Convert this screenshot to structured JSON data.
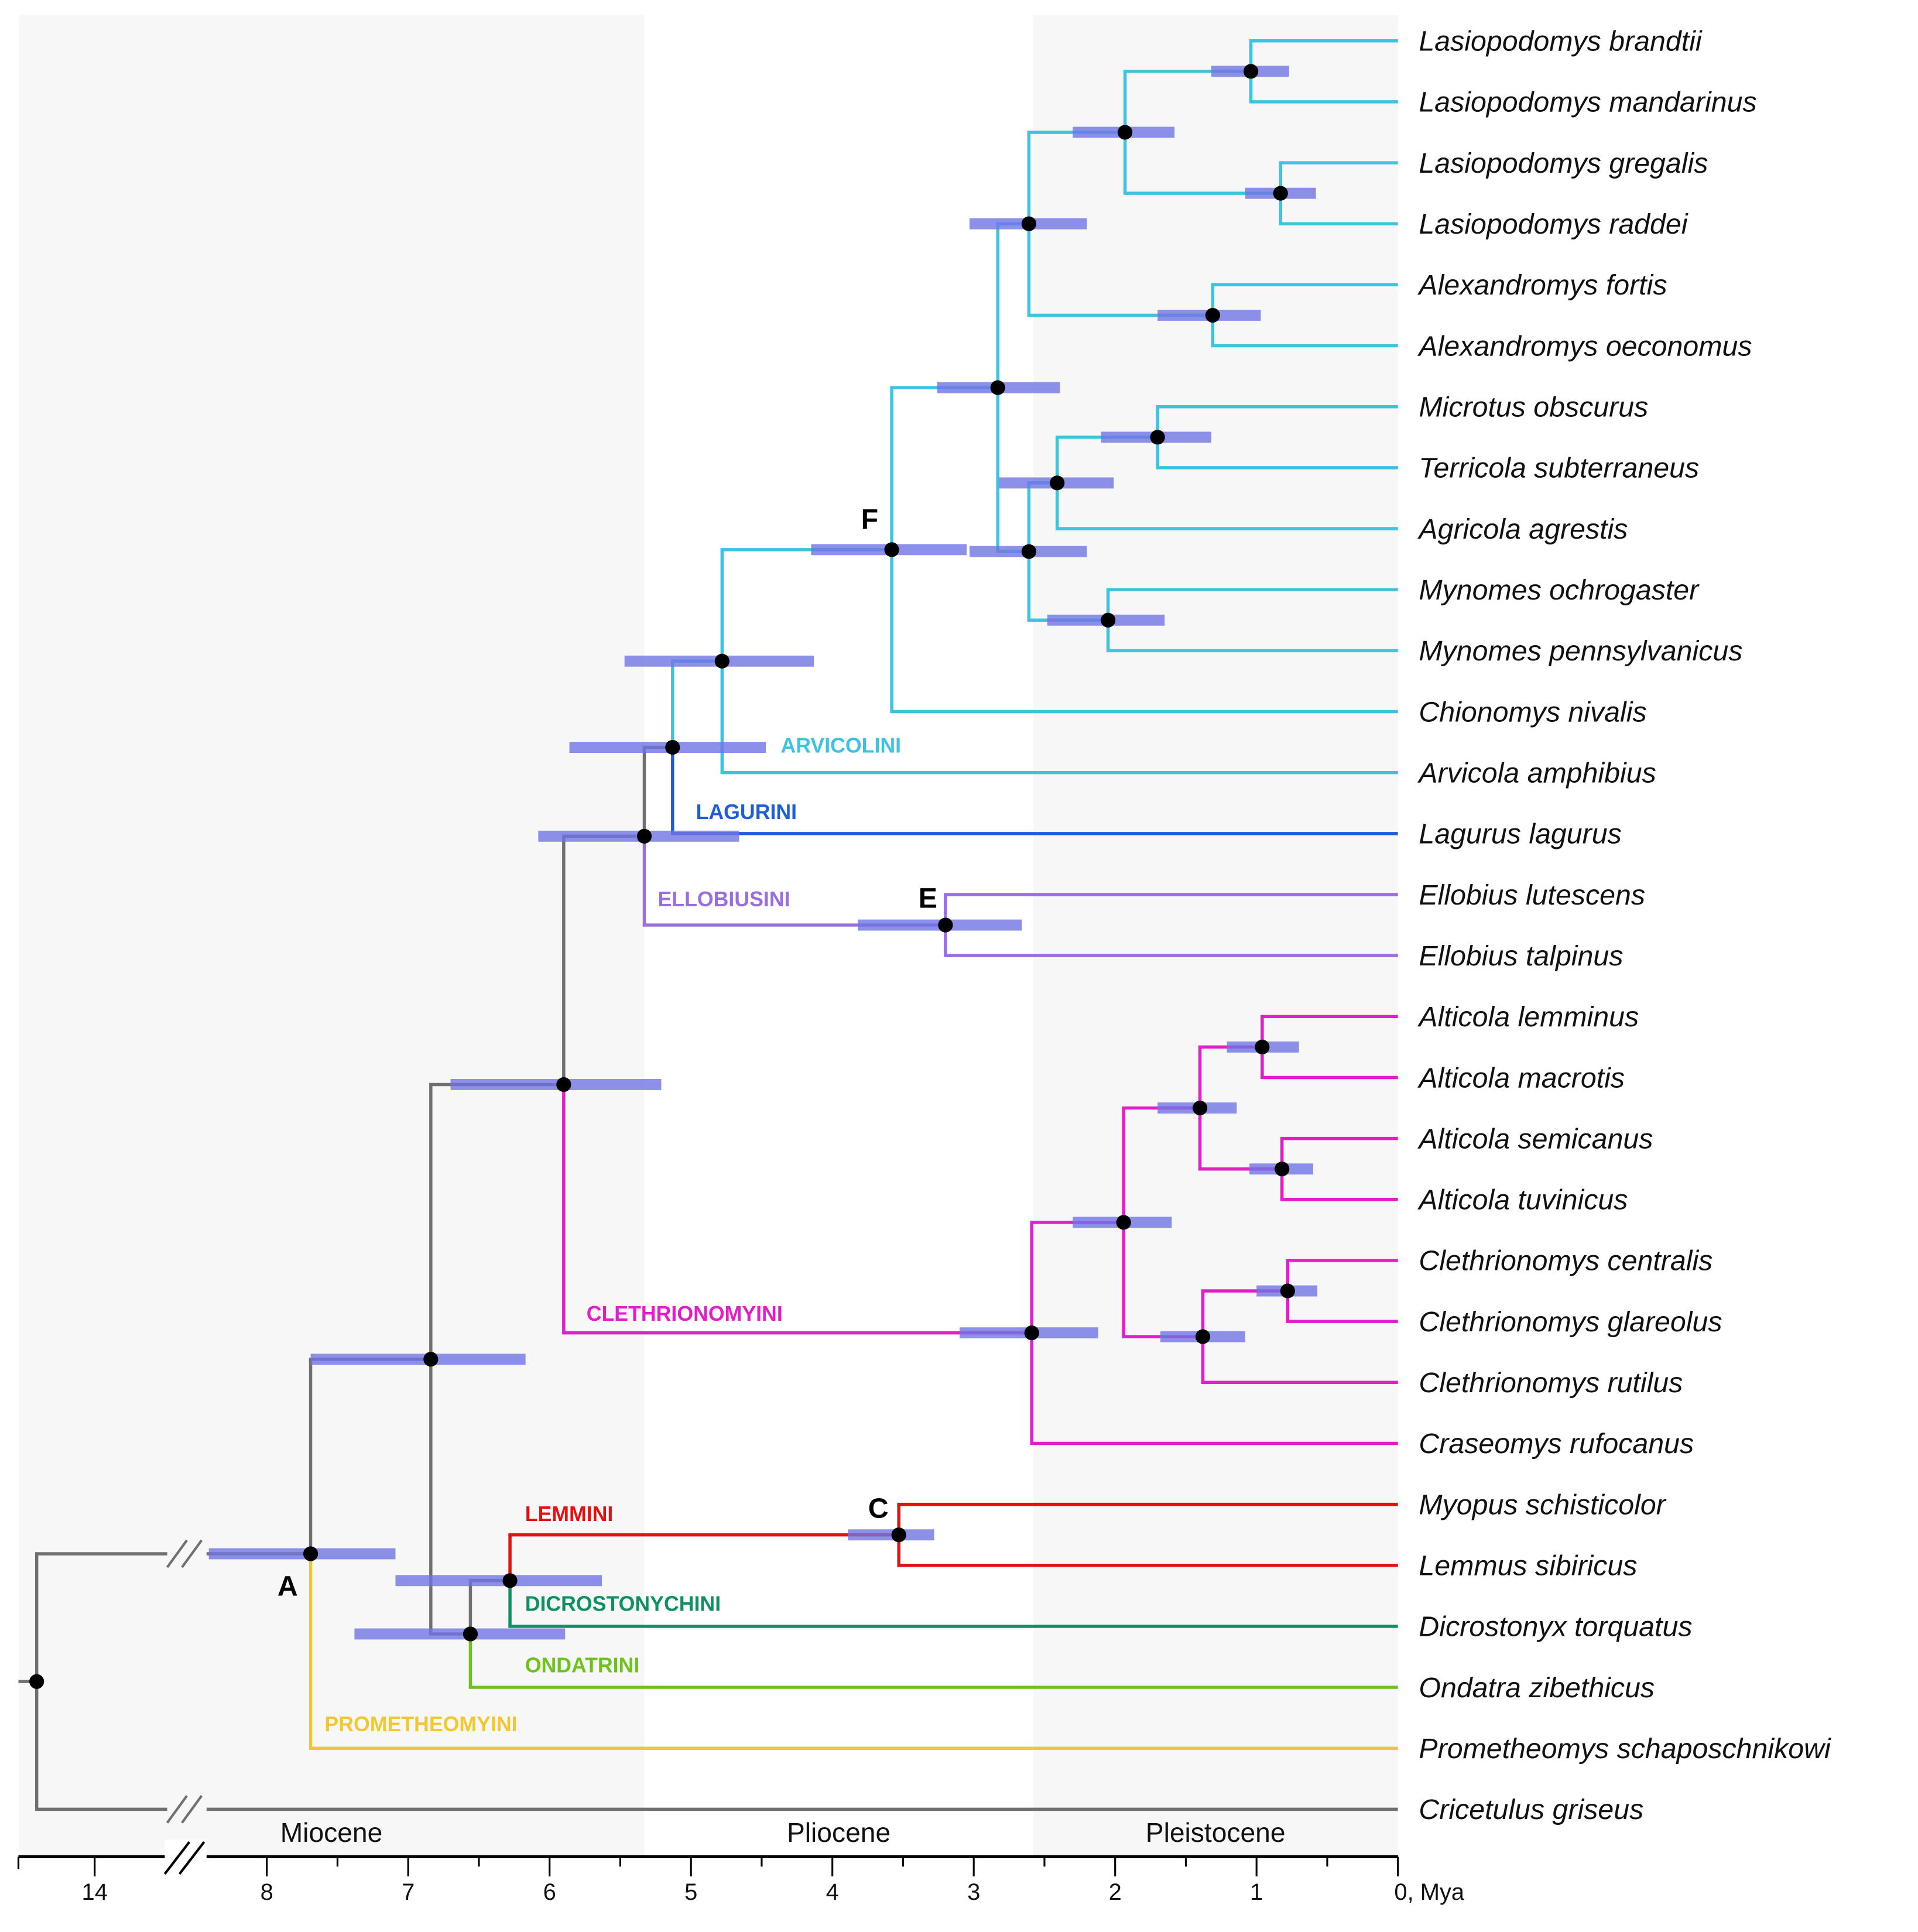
{
  "colors": {
    "gray": "#707070",
    "arv": "#3ec3df",
    "lag": "#1f5fd6",
    "ell": "#9a6ee0",
    "cleth": "#e01fc9",
    "lem": "#e01212",
    "dic": "#0f9063",
    "ond": "#6ec21e",
    "prom": "#f2c832",
    "ci": "#6f74e4",
    "node": "#000000"
  },
  "epochs": [
    {
      "name": "Miocene",
      "from": 14.6,
      "to": 5.33
    },
    {
      "name": "Pliocene",
      "from": 5.33,
      "to": 2.58
    },
    {
      "name": "Pleistocene",
      "from": 2.58,
      "to": 0
    }
  ],
  "axis": {
    "ticks": [
      {
        "v": 14,
        "label": "14"
      },
      {
        "v": 8,
        "label": "8"
      },
      {
        "v": 7,
        "label": "7"
      },
      {
        "v": 6,
        "label": "6"
      },
      {
        "v": 5,
        "label": "5"
      },
      {
        "v": 4,
        "label": "4"
      },
      {
        "v": 3,
        "label": "3"
      },
      {
        "v": 2,
        "label": "2"
      },
      {
        "v": 1,
        "label": "1"
      },
      {
        "v": 0,
        "label": "0, Mya"
      }
    ],
    "unit": "Mya",
    "broken": [
      8.5,
      14
    ]
  },
  "tribes": [
    {
      "key": "arv",
      "label": "ARVICOLINI"
    },
    {
      "key": "lag",
      "label": "LAGURINI"
    },
    {
      "key": "ell",
      "label": "ELLOBIUSINI"
    },
    {
      "key": "cleth",
      "label": "CLETHRIONOMYINI"
    },
    {
      "key": "lem",
      "label": "LEMMINI"
    },
    {
      "key": "dic",
      "label": "DICROSTONYCHINI"
    },
    {
      "key": "ond",
      "label": "ONDATRINI"
    },
    {
      "key": "prom",
      "label": "PROMETHEOMYINI"
    }
  ],
  "tree": {
    "age": 14.41,
    "clade": "gray",
    "children": [
      {
        "age": 7.69,
        "ci": [
          8.41,
          7.09
        ],
        "label": "A",
        "children": [
          {
            "age": 6.84,
            "ci": [
              7.69,
              6.17
            ],
            "children": [
              {
                "age": 5.9,
                "ci": [
                  6.7,
                  5.21
                ],
                "children": [
                  {
                    "age": 5.33,
                    "ci": [
                      6.08,
                      4.66
                    ],
                    "children": [
                      {
                        "age": 5.13,
                        "ci": [
                          5.86,
                          4.47
                        ],
                        "children": [
                          {
                            "age": 4.78,
                            "ci": [
                              5.47,
                              4.13
                            ],
                            "clade": "arv",
                            "children": [
                              {
                                "age": 3.58,
                                "ci": [
                                  4.15,
                                  3.05
                                ],
                                "label": "F",
                                "children": [
                                  {
                                    "age": 2.83,
                                    "ci": [
                                      3.26,
                                      2.39
                                    ],
                                    "children": [
                                      {
                                        "age": 2.61,
                                        "ci": [
                                          3.03,
                                          2.2
                                        ],
                                        "children": [
                                          {
                                            "age": 1.93,
                                            "ci": [
                                              2.3,
                                              1.58
                                            ],
                                            "children": [
                                              {
                                                "age": 1.04,
                                                "ci": [
                                                  1.32,
                                                  0.77
                                                ],
                                                "children": [
                                                  {
                                                    "name": "Lasiopodomys brandtii"
                                                  },
                                                  {
                                                    "name": "Lasiopodomys mandarinus"
                                                  }
                                                ]
                                              },
                                              {
                                                "age": 0.83,
                                                "ci": [
                                                  1.08,
                                                  0.58
                                                ],
                                                "children": [
                                                  {
                                                    "name": "Lasiopodomys gregalis"
                                                  },
                                                  {
                                                    "name": "Lasiopodomys raddei"
                                                  }
                                                ]
                                              }
                                            ]
                                          },
                                          {
                                            "age": 1.31,
                                            "ci": [
                                              1.7,
                                              0.97
                                            ],
                                            "children": [
                                              {
                                                "name": "Alexandromys fortis"
                                              },
                                              {
                                                "name": "Alexandromys oeconomus"
                                              }
                                            ]
                                          }
                                        ]
                                      },
                                      {
                                        "age": 2.61,
                                        "ci": [
                                          3.03,
                                          2.2
                                        ],
                                        "children": [
                                          {
                                            "age": 2.41,
                                            "ci": [
                                              2.82,
                                              2.01
                                            ],
                                            "children": [
                                              {
                                                "age": 1.7,
                                                "ci": [
                                                  2.1,
                                                  1.32
                                                ],
                                                "children": [
                                                  {
                                                    "name": "Microtus obscurus"
                                                  },
                                                  {
                                                    "name": "Terricola subterraneus"
                                                  }
                                                ]
                                              },
                                              {
                                                "name": "Agricola agrestis"
                                              }
                                            ]
                                          },
                                          {
                                            "age": 2.05,
                                            "ci": [
                                              2.48,
                                              1.65
                                            ],
                                            "children": [
                                              {
                                                "name": "Mynomes ochrogaster"
                                              },
                                              {
                                                "name": "Mynomes pennsylvanicus"
                                              }
                                            ]
                                          }
                                        ]
                                      }
                                    ]
                                  },
                                  {
                                    "name": "Chionomys nivalis"
                                  }
                                ]
                              },
                              {
                                "name": "Arvicola amphibius"
                              }
                            ]
                          },
                          {
                            "name": "Lagurus lagurus",
                            "clade": "lag"
                          }
                        ]
                      },
                      {
                        "age": 3.2,
                        "ci": [
                          3.82,
                          2.66
                        ],
                        "label": "E",
                        "clade": "ell",
                        "children": [
                          {
                            "name": "Ellobius lutescens"
                          },
                          {
                            "name": "Ellobius talpinus"
                          }
                        ]
                      }
                    ]
                  },
                  {
                    "age": 2.59,
                    "ci": [
                      3.1,
                      2.12
                    ],
                    "clade": "cleth",
                    "children": [
                      {
                        "age": 1.94,
                        "ci": [
                          2.3,
                          1.6
                        ],
                        "children": [
                          {
                            "age": 1.4,
                            "ci": [
                              1.7,
                              1.14
                            ],
                            "children": [
                              {
                                "age": 0.96,
                                "ci": [
                                  1.21,
                                  0.7
                                ],
                                "children": [
                                  {
                                    "name": "Alticola lemminus"
                                  },
                                  {
                                    "name": "Alticola macrotis"
                                  }
                                ]
                              },
                              {
                                "age": 0.82,
                                "ci": [
                                  1.05,
                                  0.6
                                ],
                                "children": [
                                  {
                                    "name": "Alticola semicanus"
                                  },
                                  {
                                    "name": "Alticola tuvinicus"
                                  }
                                ]
                              }
                            ]
                          },
                          {
                            "age": 1.38,
                            "ci": [
                              1.68,
                              1.08
                            ],
                            "children": [
                              {
                                "age": 0.78,
                                "ci": [
                                  1.0,
                                  0.57
                                ],
                                "children": [
                                  {
                                    "name": "Clethrionomys centralis"
                                  },
                                  {
                                    "name": "Clethrionomys glareolus"
                                  }
                                ]
                              },
                              {
                                "name": "Clethrionomys rutilus"
                              }
                            ]
                          }
                        ]
                      },
                      {
                        "name": "Craseomys rufocanus"
                      }
                    ]
                  }
                ]
              },
              {
                "age": 6.56,
                "ci": [
                  7.38,
                  5.89
                ],
                "children": [
                  {
                    "age": 6.28,
                    "ci": [
                      7.09,
                      5.63
                    ],
                    "children": [
                      {
                        "age": 3.53,
                        "ci": [
                          3.89,
                          3.28
                        ],
                        "label": "C",
                        "clade": "lem",
                        "children": [
                          {
                            "name": "Myopus schisticolor"
                          },
                          {
                            "name": "Lemmus sibiricus"
                          }
                        ]
                      },
                      {
                        "name": "Dicrostonyx torquatus",
                        "clade": "dic"
                      }
                    ]
                  },
                  {
                    "name": "Ondatra zibethicus",
                    "clade": "ond"
                  }
                ]
              }
            ]
          },
          {
            "name": "Prometheomys schaposchnikowi",
            "clade": "prom"
          }
        ]
      },
      {
        "name": "Cricetulus griseus"
      }
    ]
  }
}
